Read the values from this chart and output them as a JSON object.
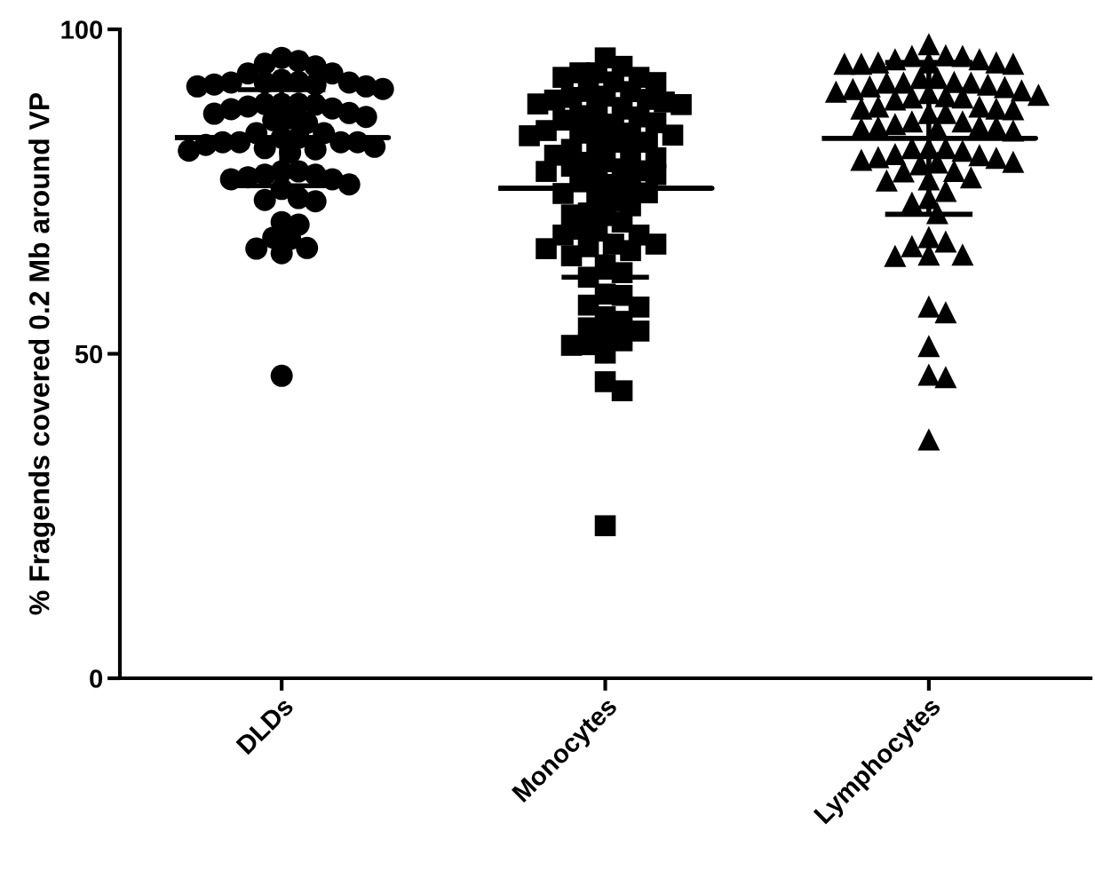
{
  "chart_data": {
    "type": "scatter",
    "ylabel": "% Fragends covered 0.2 Mb around VP",
    "categories": [
      "DLDs",
      "Monocytes",
      "Lymphocytes"
    ],
    "ylim": [
      0,
      100
    ],
    "yticks": [
      0,
      50,
      100
    ],
    "grid": false,
    "legend": false,
    "series": [
      {
        "marker": "circle",
        "color": "#000000",
        "x": [
          "DLDs",
          "DLDs",
          "DLDs",
          "DLDs",
          "DLDs",
          "DLDs",
          "DLDs",
          "DLDs",
          "DLDs",
          "DLDs",
          "DLDs",
          "DLDs",
          "DLDs",
          "DLDs",
          "DLDs",
          "DLDs",
          "DLDs",
          "DLDs",
          "DLDs",
          "DLDs",
          "DLDs",
          "DLDs",
          "DLDs",
          "DLDs",
          "DLDs",
          "DLDs",
          "DLDs",
          "DLDs",
          "DLDs",
          "DLDs",
          "DLDs",
          "DLDs",
          "DLDs",
          "DLDs",
          "DLDs",
          "DLDs",
          "DLDs",
          "DLDs",
          "DLDs",
          "DLDs",
          "DLDs",
          "DLDs",
          "DLDs",
          "DLDs",
          "DLDs",
          "DLDs",
          "DLDs",
          "DLDs",
          "DLDs",
          "DLDs",
          "DLDs",
          "DLDs",
          "DLDs",
          "DLDs",
          "DLDs",
          "DLDs",
          "DLDs",
          "DLDs",
          "DLDs",
          "DLDs",
          "DLDs",
          "DLDs",
          "DLDs"
        ],
        "values": [
          95.6,
          94.3,
          94.7,
          93.2,
          95.1,
          93.2,
          91.9,
          91.8,
          91.5,
          91.2,
          90.8,
          91.2,
          91.5,
          91.8,
          91.8,
          92.2,
          88.5,
          88.1,
          87.7,
          87.0,
          86.3,
          85.6,
          88.5,
          86.0,
          86.5,
          87.1,
          87.8,
          88.4,
          88.5,
          83.3,
          82.6,
          81.9,
          81.5,
          81.0,
          82.6,
          82.6,
          81.3,
          81.7,
          82.2,
          82.6,
          83.3,
          84.0,
          84.0,
          78.1,
          76.9,
          76.1,
          77.6,
          77.6,
          75.4,
          77.2,
          76.9,
          78.1,
          74.0,
          73.5,
          73.7,
          69.9,
          67.7,
          66.2,
          65.5,
          66.3,
          67.9,
          70.3,
          46.6
        ]
      },
      {
        "marker": "square",
        "color": "#000000",
        "x": [
          "Monocytes",
          "Monocytes",
          "Monocytes",
          "Monocytes",
          "Monocytes",
          "Monocytes",
          "Monocytes",
          "Monocytes",
          "Monocytes",
          "Monocytes",
          "Monocytes",
          "Monocytes",
          "Monocytes",
          "Monocytes",
          "Monocytes",
          "Monocytes",
          "Monocytes",
          "Monocytes",
          "Monocytes",
          "Monocytes",
          "Monocytes",
          "Monocytes",
          "Monocytes",
          "Monocytes",
          "Monocytes",
          "Monocytes",
          "Monocytes",
          "Monocytes",
          "Monocytes",
          "Monocytes",
          "Monocytes",
          "Monocytes",
          "Monocytes",
          "Monocytes",
          "Monocytes",
          "Monocytes",
          "Monocytes",
          "Monocytes",
          "Monocytes",
          "Monocytes",
          "Monocytes",
          "Monocytes",
          "Monocytes",
          "Monocytes",
          "Monocytes",
          "Monocytes",
          "Monocytes",
          "Monocytes",
          "Monocytes",
          "Monocytes",
          "Monocytes",
          "Monocytes",
          "Monocytes",
          "Monocytes",
          "Monocytes",
          "Monocytes",
          "Monocytes",
          "Monocytes",
          "Monocytes",
          "Monocytes",
          "Monocytes",
          "Monocytes",
          "Monocytes",
          "Monocytes",
          "Monocytes",
          "Monocytes",
          "Monocytes",
          "Monocytes",
          "Monocytes",
          "Monocytes",
          "Monocytes",
          "Monocytes",
          "Monocytes",
          "Monocytes",
          "Monocytes",
          "Monocytes",
          "Monocytes",
          "Monocytes",
          "Monocytes",
          "Monocytes",
          "Monocytes",
          "Monocytes",
          "Monocytes",
          "Monocytes",
          "Monocytes",
          "Monocytes"
        ],
        "values": [
          95.6,
          93.3,
          92.6,
          91.9,
          90.8,
          89.7,
          89.2,
          89.1,
          89.5,
          90.4,
          91.8,
          92.6,
          93.3,
          94.3,
          88.5,
          87.7,
          86.7,
          86.0,
          85.4,
          84.4,
          84.0,
          84.7,
          85.6,
          86.5,
          87.4,
          88.4,
          88.8,
          83.7,
          82.6,
          81.9,
          81.0,
          80.2,
          79.5,
          78.9,
          79.6,
          80.6,
          81.5,
          82.6,
          83.6,
          84.0,
          78.5,
          77.6,
          76.5,
          75.5,
          74.7,
          73.5,
          72.8,
          74.0,
          74.8,
          76.1,
          77.2,
          78.1,
          78.2,
          71.7,
          71.3,
          69.2,
          68.3,
          68.3,
          68.9,
          70.3,
          71.4,
          66.9,
          66.5,
          65.9,
          63.7,
          61.8,
          62.5,
          65.1,
          66.2,
          66.9,
          59.0,
          57.2,
          55.7,
          57.5,
          59.2,
          54.0,
          52.7,
          51.4,
          50.1,
          51.3,
          52.0,
          53.5,
          55.0,
          45.7,
          44.3,
          23.5
        ]
      },
      {
        "marker": "triangle",
        "color": "#000000",
        "x": [
          "Lymphocytes",
          "Lymphocytes",
          "Lymphocytes",
          "Lymphocytes",
          "Lymphocytes",
          "Lymphocytes",
          "Lymphocytes",
          "Lymphocytes",
          "Lymphocytes",
          "Lymphocytes",
          "Lymphocytes",
          "Lymphocytes",
          "Lymphocytes",
          "Lymphocytes",
          "Lymphocytes",
          "Lymphocytes",
          "Lymphocytes",
          "Lymphocytes",
          "Lymphocytes",
          "Lymphocytes",
          "Lymphocytes",
          "Lymphocytes",
          "Lymphocytes",
          "Lymphocytes",
          "Lymphocytes",
          "Lymphocytes",
          "Lymphocytes",
          "Lymphocytes",
          "Lymphocytes",
          "Lymphocytes",
          "Lymphocytes",
          "Lymphocytes",
          "Lymphocytes",
          "Lymphocytes",
          "Lymphocytes",
          "Lymphocytes",
          "Lymphocytes",
          "Lymphocytes",
          "Lymphocytes",
          "Lymphocytes",
          "Lymphocytes",
          "Lymphocytes",
          "Lymphocytes",
          "Lymphocytes",
          "Lymphocytes",
          "Lymphocytes",
          "Lymphocytes",
          "Lymphocytes",
          "Lymphocytes",
          "Lymphocytes",
          "Lymphocytes",
          "Lymphocytes",
          "Lymphocytes",
          "Lymphocytes",
          "Lymphocytes",
          "Lymphocytes",
          "Lymphocytes",
          "Lymphocytes",
          "Lymphocytes",
          "Lymphocytes",
          "Lymphocytes",
          "Lymphocytes",
          "Lymphocytes",
          "Lymphocytes",
          "Lymphocytes",
          "Lymphocytes",
          "Lymphocytes",
          "Lymphocytes",
          "Lymphocytes",
          "Lymphocytes",
          "Lymphocytes",
          "Lymphocytes",
          "Lymphocytes",
          "Lymphocytes",
          "Lymphocytes",
          "Lymphocytes",
          "Lymphocytes",
          "Lymphocytes",
          "Lymphocytes"
        ],
        "values": [
          97.7,
          95.9,
          95.4,
          94.9,
          94.9,
          94.7,
          94.7,
          94.7,
          94.9,
          95.4,
          95.9,
          96.0,
          92.5,
          92.5,
          91.9,
          91.8,
          91.2,
          90.8,
          90.4,
          89.9,
          89.5,
          89.2,
          89.5,
          89.7,
          90.2,
          90.6,
          91.1,
          91.5,
          91.8,
          91.8,
          87.7,
          87.8,
          87.1,
          85.8,
          85.4,
          85.0,
          84.7,
          84.4,
          84.7,
          85.0,
          85.1,
          85.8,
          87.1,
          87.8,
          88.1,
          88.1,
          81.7,
          81.7,
          80.8,
          80.2,
          79.6,
          79.2,
          78.2,
          78.1,
          79.5,
          79.9,
          80.3,
          80.6,
          81.3,
          81.7,
          77.2,
          76.7,
          74.0,
          73.3,
          75.1,
          76.9,
          71.7,
          68.0,
          66.6,
          65.3,
          65.1,
          65.3,
          67.3,
          56.4,
          57.3,
          51.2,
          46.8,
          46.4,
          36.8
        ]
      },
      {
        "type": "box",
        "color": "#000000",
        "boxes": [
          {
            "low": 75.9,
            "q1": 83.3,
            "median": 83.3,
            "q3": 83.3,
            "high": 90.7
          },
          {
            "low": 61.8,
            "q1": 75.5,
            "median": 75.5,
            "q3": 75.5,
            "high": 89.2
          },
          {
            "low": 71.5,
            "q1": 83.2,
            "median": 83.2,
            "q3": 83.2,
            "high": 94.9
          }
        ]
      }
    ]
  }
}
